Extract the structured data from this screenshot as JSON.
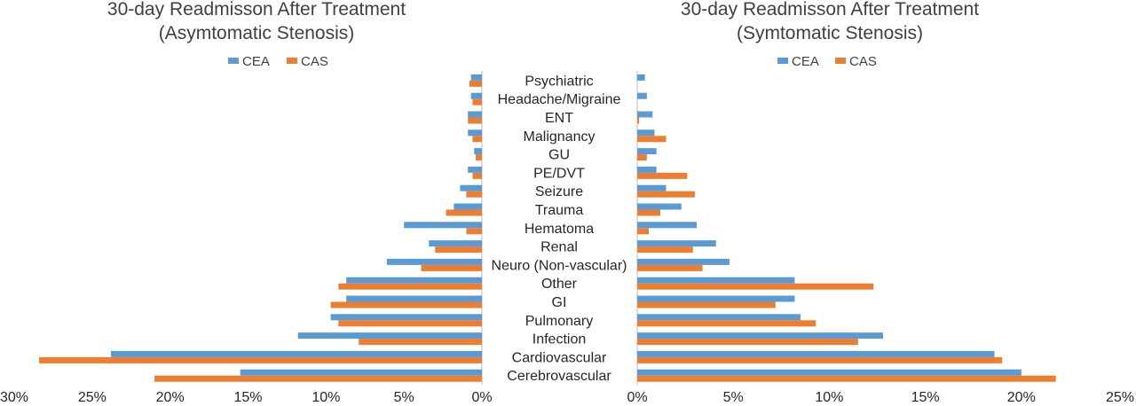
{
  "colors": {
    "CEA": "#5B9BD5",
    "CAS": "#ED7D31"
  },
  "categories": [
    "Psychiatric",
    "Headache/Migraine",
    "ENT",
    "Malignancy",
    "GU",
    "PE/DVT",
    "Seizure",
    "Trauma",
    "Hematoma",
    "Renal",
    "Neuro (Non-vascular)",
    "Other",
    "GI",
    "Pulmonary",
    "Infection",
    "Cardiovascular",
    "Cerebrovascular"
  ],
  "chart_data": [
    {
      "type": "bar",
      "orientation": "horizontal",
      "title": "30-day Readmisson After Treatment",
      "subtitle": "(Asymtomatic Stenosis)",
      "legend_position": "top",
      "xlim": [
        0,
        30
      ],
      "x_direction": "reversed",
      "tick_labels": [
        "30%",
        "25%",
        "20%",
        "15%",
        "10%",
        "5%",
        "0%"
      ],
      "series": [
        {
          "name": "CEA",
          "values": [
            0.7,
            0.7,
            0.9,
            0.9,
            0.5,
            0.9,
            1.4,
            1.8,
            5.0,
            3.4,
            6.1,
            8.7,
            8.7,
            9.7,
            11.8,
            23.8,
            15.5
          ]
        },
        {
          "name": "CAS",
          "values": [
            0.8,
            0.6,
            0.9,
            0.6,
            0.4,
            0.6,
            1.0,
            2.3,
            1.0,
            3.0,
            3.9,
            9.2,
            9.7,
            9.2,
            7.9,
            28.4,
            21.0
          ]
        }
      ]
    },
    {
      "type": "bar",
      "orientation": "horizontal",
      "title": "30-day Readmisson After Treatment",
      "subtitle": "(Symtomatic Stenosis)",
      "legend_position": "top",
      "xlim": [
        0,
        25
      ],
      "tick_labels": [
        "0%",
        "5%",
        "10%",
        "15%",
        "20%",
        "25%"
      ],
      "series": [
        {
          "name": "CEA",
          "values": [
            0.4,
            0.5,
            0.8,
            0.9,
            1.0,
            1.0,
            1.5,
            2.3,
            3.1,
            4.1,
            4.8,
            8.2,
            8.2,
            8.5,
            12.8,
            18.6,
            20.0
          ]
        },
        {
          "name": "CAS",
          "values": [
            0,
            0,
            0.1,
            1.5,
            0.5,
            2.6,
            3.0,
            1.2,
            0.6,
            2.9,
            3.4,
            12.3,
            7.2,
            9.3,
            11.5,
            19.0,
            21.8
          ]
        }
      ]
    }
  ]
}
